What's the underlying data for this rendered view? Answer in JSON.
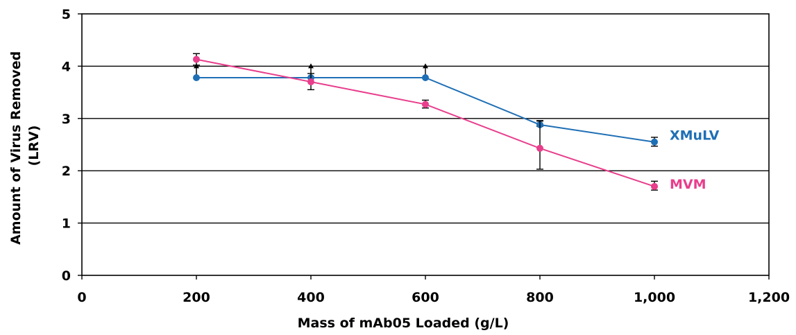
{
  "chart_data": {
    "type": "line",
    "title": "",
    "xlabel": "Mass of mAb05 Loaded (g/L)",
    "ylabel_lines": [
      "Amount of Virus Removed",
      "(LRV)"
    ],
    "xlim": [
      0,
      1200
    ],
    "ylim": [
      0,
      5
    ],
    "x_ticks": [
      0,
      200,
      400,
      600,
      800,
      1000,
      1200
    ],
    "x_tick_labels": [
      "0",
      "200",
      "400",
      "600",
      "800",
      "1,000",
      "1,200"
    ],
    "y_ticks": [
      0,
      1,
      2,
      3,
      4,
      5
    ],
    "y_tick_labels": [
      "0",
      "1",
      "2",
      "3",
      "4",
      "5"
    ],
    "grid": "horizontal",
    "legend": "direct labels at right end of each series",
    "series": [
      {
        "name": "XMuLV",
        "color": "#1f6fb5",
        "x": [
          200,
          400,
          600,
          800,
          1000
        ],
        "y": [
          3.78,
          3.78,
          3.78,
          2.88,
          2.55
        ],
        "error_lower": [
          null,
          null,
          null,
          2.85,
          2.47
        ],
        "error_upper": [
          null,
          null,
          null,
          2.96,
          2.64
        ],
        "greater_than_markers": [
          {
            "x": 200,
            "from": 3.78,
            "to": 4.0
          },
          {
            "x": 400,
            "from": 3.78,
            "to": 4.0
          },
          {
            "x": 600,
            "from": 3.78,
            "to": 4.0
          }
        ]
      },
      {
        "name": "MVM",
        "color": "#e83e8c",
        "x": [
          200,
          400,
          600,
          800,
          1000
        ],
        "y": [
          4.13,
          3.7,
          3.27,
          2.43,
          1.7
        ],
        "error_lower": [
          4.02,
          3.55,
          3.2,
          2.03,
          1.63
        ],
        "error_upper": [
          4.24,
          3.86,
          3.35,
          2.95,
          1.8
        ]
      }
    ]
  }
}
